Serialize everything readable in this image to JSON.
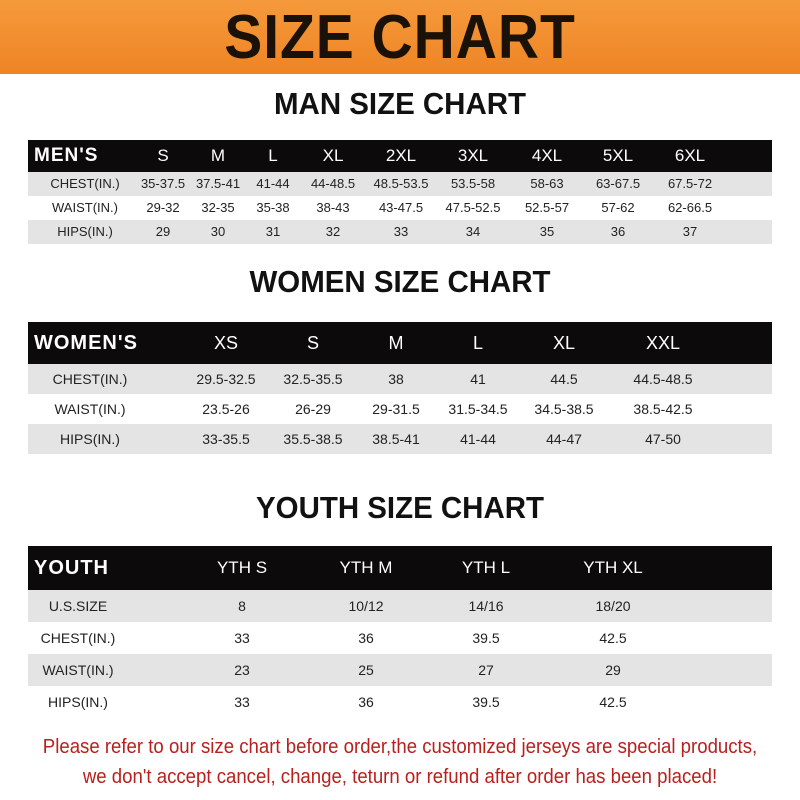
{
  "banner": {
    "title": "SIZE CHART",
    "color": "#f08a2a"
  },
  "men": {
    "title": "MAN SIZE CHART",
    "headers": [
      "MEN'S",
      "S",
      "M",
      "L",
      "XL",
      "2XL",
      "3XL",
      "4XL",
      "5XL",
      "6XL"
    ],
    "rows": [
      [
        "CHEST(IN.)",
        "35-37.5",
        "37.5-41",
        "41-44",
        "44-48.5",
        "48.5-53.5",
        "53.5-58",
        "58-63",
        "63-67.5",
        "67.5-72"
      ],
      [
        "WAIST(IN.)",
        "29-32",
        "32-35",
        "35-38",
        "38-43",
        "43-47.5",
        "47.5-52.5",
        "52.5-57",
        "57-62",
        "62-66.5"
      ],
      [
        "HIPS(IN.)",
        "29",
        "30",
        "31",
        "32",
        "33",
        "34",
        "35",
        "36",
        "37"
      ]
    ]
  },
  "women": {
    "title": "WOMEN SIZE CHART",
    "headers": [
      "WOMEN'S",
      "XS",
      "S",
      "M",
      "L",
      "XL",
      "XXL"
    ],
    "rows": [
      [
        "CHEST(IN.)",
        "29.5-32.5",
        "32.5-35.5",
        "38",
        "41",
        "44.5",
        "44.5-48.5"
      ],
      [
        "WAIST(IN.)",
        "23.5-26",
        "26-29",
        "29-31.5",
        "31.5-34.5",
        "34.5-38.5",
        "38.5-42.5"
      ],
      [
        "HIPS(IN.)",
        "33-35.5",
        "35.5-38.5",
        "38.5-41",
        "41-44",
        "44-47",
        "47-50"
      ]
    ]
  },
  "youth": {
    "title": "YOUTH SIZE CHART",
    "headers": [
      "YOUTH",
      "YTH S",
      "YTH M",
      "YTH L",
      "YTH XL"
    ],
    "rows": [
      [
        "U.S.SIZE",
        "8",
        "10/12",
        "14/16",
        "18/20"
      ],
      [
        "CHEST(IN.)",
        "33",
        "36",
        "39.5",
        "42.5"
      ],
      [
        "WAIST(IN.)",
        "23",
        "25",
        "27",
        "29"
      ],
      [
        "HIPS(IN.)",
        "33",
        "36",
        "39.5",
        "42.5"
      ]
    ]
  },
  "note": {
    "line1": "Please refer to our size chart before order,the customized jerseys are special products,",
    "line2": "we don't accept cancel, change, teturn or refund after order has been placed!"
  }
}
